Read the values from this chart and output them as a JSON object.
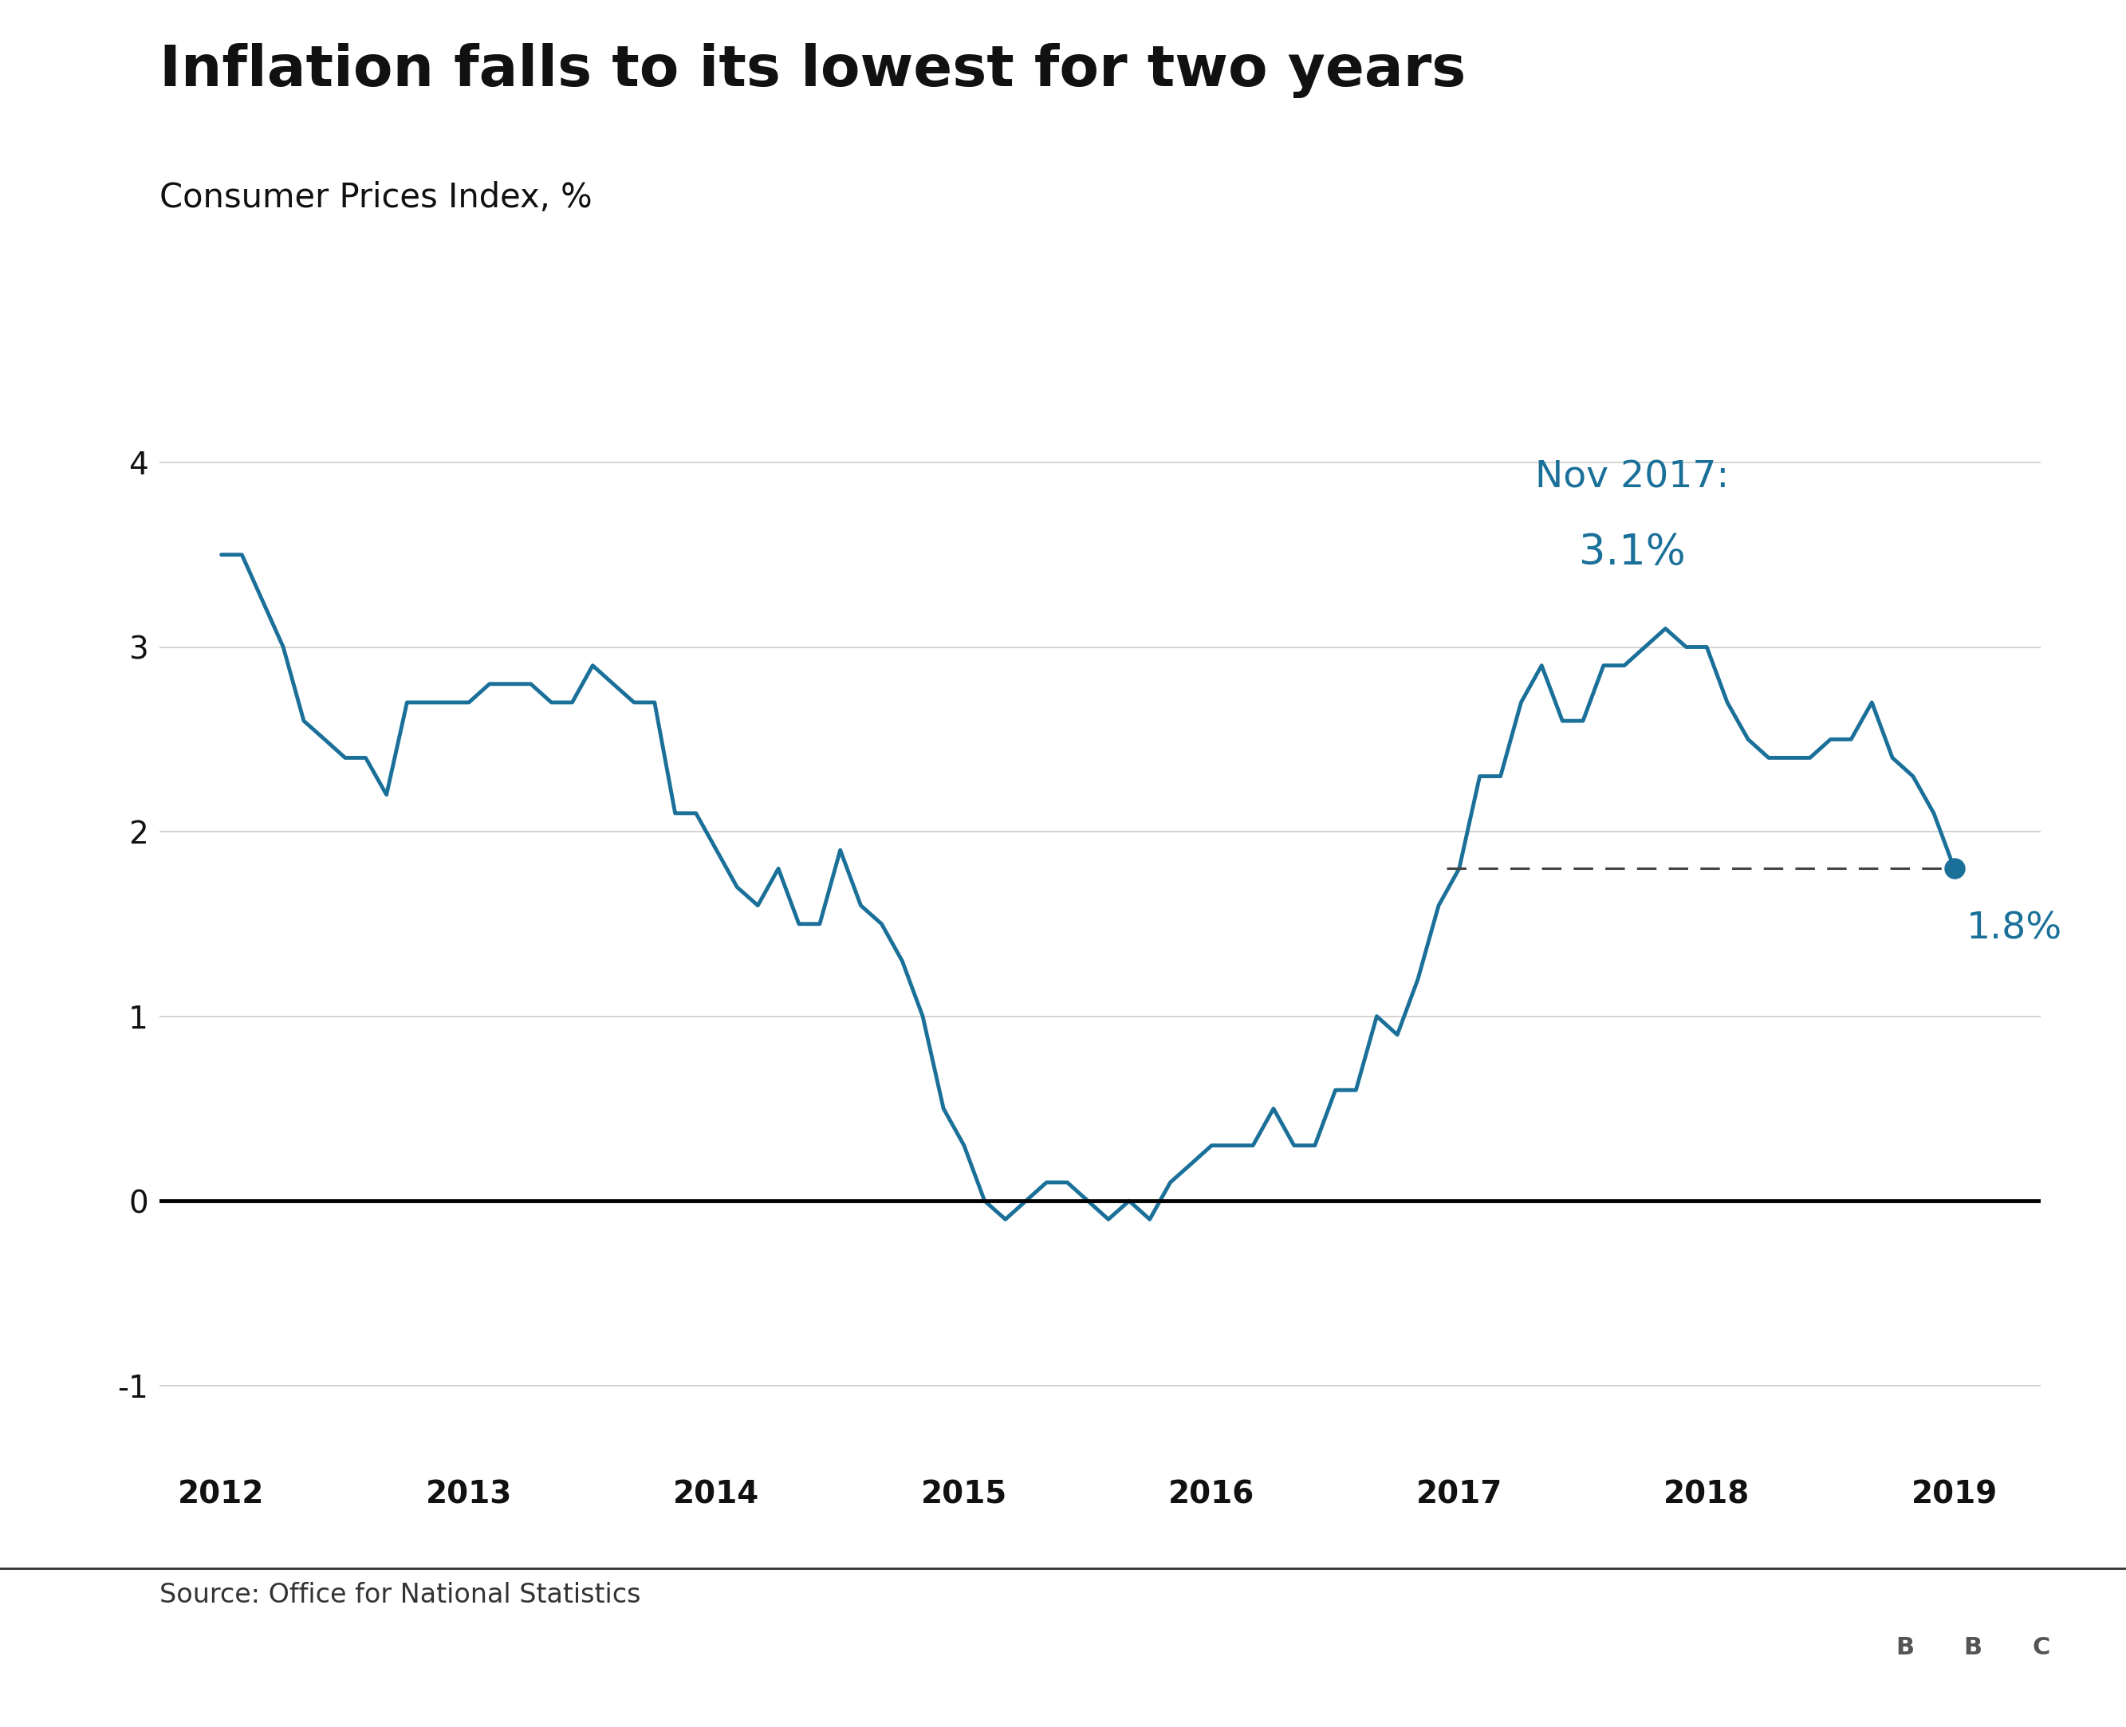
{
  "title": "Inflation falls to its lowest for two years",
  "subtitle": "Consumer Prices Index, %",
  "source": "Source: Office for National Statistics",
  "line_color": "#1a7099",
  "annotation_color": "#1a7099",
  "background_color": "#ffffff",
  "title_fontsize": 52,
  "subtitle_fontsize": 30,
  "source_fontsize": 24,
  "tick_fontsize": 28,
  "annotation_fontsize": 34,
  "value_fontsize": 38,
  "ylim": [
    -1.4,
    4.4
  ],
  "yticks": [
    -1,
    0,
    1,
    2,
    3,
    4
  ],
  "nov2017_label": "Nov 2017:",
  "nov2017_value": "3.1%",
  "last_value_label": "1.8%",
  "dashed_line_y": 1.8,
  "bbc_color": "#555555",
  "separator_color": "#333333",
  "grid_color": "#cccccc",
  "zero_line_color": "#000000",
  "data": [
    [
      2012.0,
      3.5
    ],
    [
      2012.083,
      3.5
    ],
    [
      2012.25,
      3.0
    ],
    [
      2012.333,
      2.6
    ],
    [
      2012.417,
      2.5
    ],
    [
      2012.5,
      2.4
    ],
    [
      2012.583,
      2.4
    ],
    [
      2012.667,
      2.2
    ],
    [
      2012.75,
      2.7
    ],
    [
      2012.833,
      2.7
    ],
    [
      2012.917,
      2.7
    ],
    [
      2013.0,
      2.7
    ],
    [
      2013.083,
      2.8
    ],
    [
      2013.167,
      2.8
    ],
    [
      2013.25,
      2.8
    ],
    [
      2013.333,
      2.7
    ],
    [
      2013.417,
      2.7
    ],
    [
      2013.5,
      2.9
    ],
    [
      2013.583,
      2.8
    ],
    [
      2013.667,
      2.7
    ],
    [
      2013.75,
      2.7
    ],
    [
      2013.833,
      2.1
    ],
    [
      2013.917,
      2.1
    ],
    [
      2014.0,
      1.9
    ],
    [
      2014.083,
      1.7
    ],
    [
      2014.167,
      1.6
    ],
    [
      2014.25,
      1.8
    ],
    [
      2014.333,
      1.5
    ],
    [
      2014.417,
      1.5
    ],
    [
      2014.5,
      1.9
    ],
    [
      2014.583,
      1.6
    ],
    [
      2014.667,
      1.5
    ],
    [
      2014.75,
      1.3
    ],
    [
      2014.833,
      1.0
    ],
    [
      2014.917,
      0.5
    ],
    [
      2015.0,
      0.3
    ],
    [
      2015.083,
      0.0
    ],
    [
      2015.167,
      -0.1
    ],
    [
      2015.25,
      0.0
    ],
    [
      2015.333,
      0.1
    ],
    [
      2015.417,
      0.1
    ],
    [
      2015.5,
      0.0
    ],
    [
      2015.583,
      -0.1
    ],
    [
      2015.667,
      0.0
    ],
    [
      2015.75,
      -0.1
    ],
    [
      2015.833,
      0.1
    ],
    [
      2015.917,
      0.2
    ],
    [
      2016.0,
      0.3
    ],
    [
      2016.083,
      0.3
    ],
    [
      2016.167,
      0.3
    ],
    [
      2016.25,
      0.5
    ],
    [
      2016.333,
      0.3
    ],
    [
      2016.417,
      0.3
    ],
    [
      2016.5,
      0.6
    ],
    [
      2016.583,
      0.6
    ],
    [
      2016.667,
      1.0
    ],
    [
      2016.75,
      0.9
    ],
    [
      2016.833,
      1.2
    ],
    [
      2016.917,
      1.6
    ],
    [
      2017.0,
      1.8
    ],
    [
      2017.083,
      2.3
    ],
    [
      2017.167,
      2.3
    ],
    [
      2017.25,
      2.7
    ],
    [
      2017.333,
      2.9
    ],
    [
      2017.417,
      2.6
    ],
    [
      2017.5,
      2.6
    ],
    [
      2017.583,
      2.9
    ],
    [
      2017.667,
      2.9
    ],
    [
      2017.75,
      3.0
    ],
    [
      2017.833,
      3.1
    ],
    [
      2017.917,
      3.0
    ],
    [
      2018.0,
      3.0
    ],
    [
      2018.083,
      2.7
    ],
    [
      2018.167,
      2.5
    ],
    [
      2018.25,
      2.4
    ],
    [
      2018.333,
      2.4
    ],
    [
      2018.417,
      2.4
    ],
    [
      2018.5,
      2.5
    ],
    [
      2018.583,
      2.5
    ],
    [
      2018.667,
      2.7
    ],
    [
      2018.75,
      2.4
    ],
    [
      2018.833,
      2.3
    ],
    [
      2018.917,
      2.1
    ],
    [
      2019.0,
      1.8
    ]
  ]
}
